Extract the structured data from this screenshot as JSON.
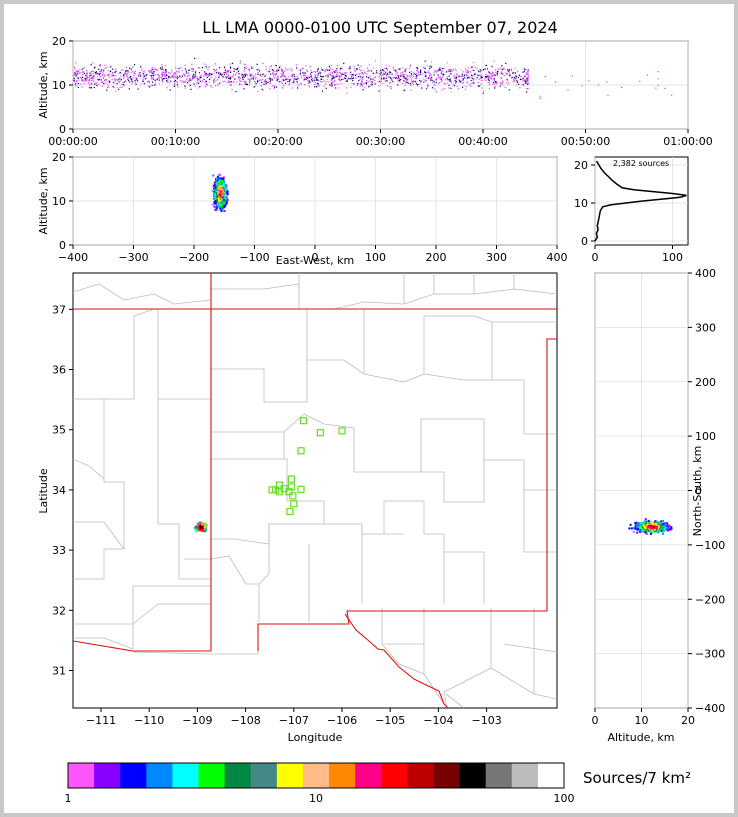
{
  "title": "LL LMA 0000-0100 UTC September 07, 2024",
  "colors": {
    "station": "#66dd22",
    "border_state": "#dd1111",
    "border_county": "#bbbbbb",
    "frame": "#000000",
    "page_bg": "#c8c8c8",
    "sources_dense": "#ff0000"
  },
  "chart_data": [
    {
      "id": "time_height",
      "type": "scatter",
      "ylabel": "Altitude, km",
      "ylim": [
        0,
        20
      ],
      "xlim": [
        "00:00:00",
        "01:00:00"
      ],
      "xticks": [
        "00:00:00",
        "00:10:00",
        "00:20:00",
        "00:30:00",
        "00:40:00",
        "00:50:00",
        "01:00:00"
      ],
      "yticks": [
        "0",
        "10",
        "20"
      ],
      "description_values": {
        "main_band_altitude_km": [
          10,
          14
        ],
        "active_period_minutes": [
          0,
          45
        ]
      }
    },
    {
      "id": "ew_height",
      "type": "scatter",
      "xlabel": "East-West, km",
      "ylabel": "Altitude, km",
      "xlim": [
        -400,
        400
      ],
      "ylim": [
        0,
        20
      ],
      "xticks": [
        "−400",
        "−300",
        "−200",
        "−100",
        "0",
        "100",
        "200",
        "300",
        "400"
      ],
      "yticks": [
        "0",
        "10",
        "20"
      ],
      "cluster": {
        "x_range_km": [
          -175,
          -140
        ],
        "alt_range_km": [
          2,
          20
        ],
        "core_alt_km": 12
      }
    },
    {
      "id": "altitude_histogram",
      "type": "line",
      "annotation": "2,382 sources",
      "xlim": [
        0,
        120
      ],
      "ylim": [
        0,
        21
      ],
      "xticks": [
        "0",
        "100"
      ],
      "yticks": [
        "0",
        "10",
        "20"
      ],
      "profile": [
        [
          0,
          0
        ],
        [
          3,
          1
        ],
        [
          2,
          2
        ],
        [
          4,
          3
        ],
        [
          3,
          4
        ],
        [
          4,
          5
        ],
        [
          5,
          6
        ],
        [
          6,
          7
        ],
        [
          7,
          8
        ],
        [
          10,
          9
        ],
        [
          20,
          9.5
        ],
        [
          40,
          10
        ],
        [
          60,
          10.5
        ],
        [
          85,
          11
        ],
        [
          110,
          11.5
        ],
        [
          118,
          12
        ],
        [
          100,
          12.5
        ],
        [
          75,
          13
        ],
        [
          50,
          13.5
        ],
        [
          35,
          14
        ],
        [
          28,
          15
        ],
        [
          22,
          16
        ],
        [
          17,
          17
        ],
        [
          12,
          18
        ],
        [
          8,
          19
        ],
        [
          5,
          20
        ],
        [
          2,
          21
        ]
      ]
    },
    {
      "id": "plan_view",
      "type": "scatter",
      "xlabel": "Longitude",
      "ylabel": "Latitude",
      "xlim": [
        -111.5,
        -102.9
      ],
      "ylim": [
        30.4,
        37.6
      ],
      "xticks": [
        "−111",
        "−110",
        "−109",
        "−108",
        "−107",
        "−106",
        "−105",
        "−104",
        "−103"
      ],
      "yticks": [
        "31",
        "32",
        "33",
        "34",
        "35",
        "36",
        "37"
      ],
      "stations": [
        [
          -106.8,
          35.15
        ],
        [
          -106.45,
          34.95
        ],
        [
          -106.0,
          34.98
        ],
        [
          -106.85,
          34.65
        ],
        [
          -107.05,
          34.18
        ],
        [
          -107.3,
          34.08
        ],
        [
          -107.2,
          34.02
        ],
        [
          -107.05,
          34.05
        ],
        [
          -106.85,
          34.01
        ],
        [
          -107.38,
          34.0
        ],
        [
          -107.3,
          33.97
        ],
        [
          -107.1,
          33.97
        ],
        [
          -107.02,
          33.9
        ],
        [
          -107.0,
          33.77
        ],
        [
          -107.08,
          33.64
        ],
        [
          -107.45,
          34.0
        ]
      ],
      "cluster": {
        "lon_range": [
          -109.1,
          -108.75
        ],
        "lat_range": [
          33.2,
          33.6
        ],
        "center": [
          -108.95,
          33.4
        ]
      }
    },
    {
      "id": "ns_height",
      "type": "scatter",
      "xlabel": "Altitude, km",
      "ylabel": "North-South, km",
      "xlim": [
        0,
        20
      ],
      "ylim": [
        -400,
        400
      ],
      "xticks": [
        "0",
        "10",
        "20"
      ],
      "yticks": [
        "−400",
        "−300",
        "−200",
        "−100",
        "0",
        "100",
        "200",
        "300",
        "400"
      ],
      "cluster": {
        "ns_range_km": [
          -85,
          -45
        ],
        "alt_range_km": [
          2,
          20
        ],
        "core_alt_km": 12
      }
    }
  ],
  "colorbar": {
    "label": "Sources/7 km²",
    "tick_labels": [
      "1",
      "10",
      "100"
    ],
    "colors": [
      "#ff55ff",
      "#8800ff",
      "#0000ff",
      "#0088ff",
      "#00ffff",
      "#00ff00",
      "#008844",
      "#448888",
      "#ffff00",
      "#ffbb88",
      "#ff8800",
      "#ff0088",
      "#ff0000",
      "#bb0000",
      "#770000",
      "#000000",
      "#777777",
      "#bbbbbb",
      "#ffffff"
    ]
  }
}
